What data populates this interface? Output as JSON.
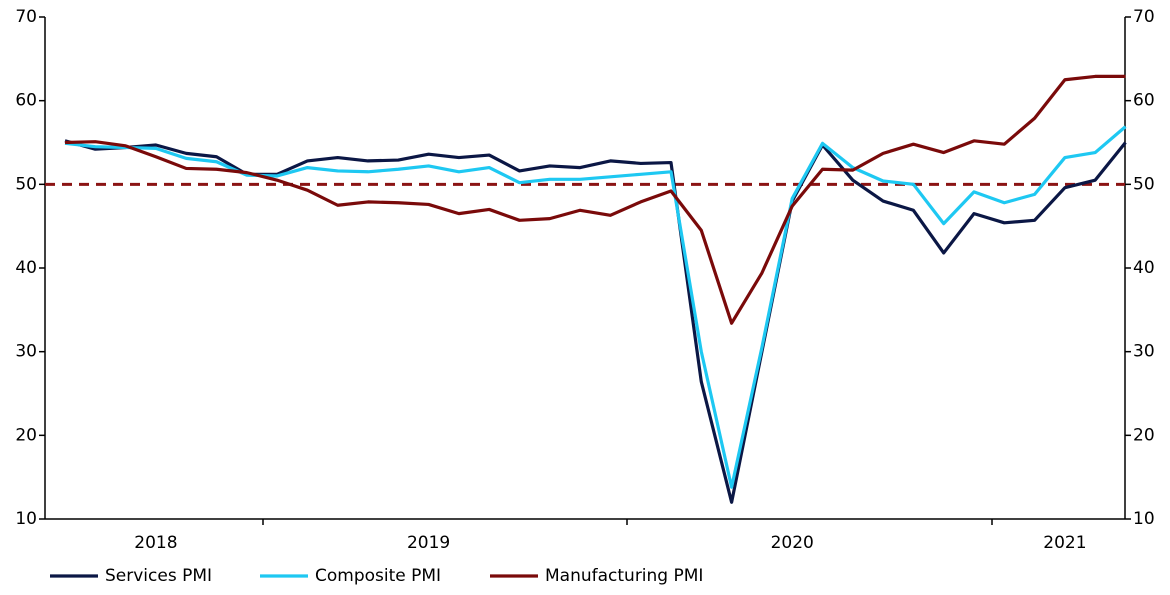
{
  "chart_data": {
    "type": "line",
    "categories": [
      null,
      null,
      null,
      "2018",
      null,
      null,
      null,
      null,
      null,
      null,
      null,
      null,
      "2019",
      null,
      null,
      null,
      null,
      null,
      null,
      null,
      null,
      null,
      null,
      null,
      "2020",
      null,
      null,
      null,
      null,
      null,
      null,
      null,
      null,
      "2021",
      null,
      null
    ],
    "series": [
      {
        "name": "Services PMI",
        "color": "#0b1745",
        "values": [
          55.2,
          54.2,
          54.4,
          54.7,
          53.7,
          53.3,
          51.2,
          51.2,
          52.8,
          53.2,
          52.8,
          52.9,
          53.6,
          53.2,
          53.5,
          51.6,
          52.2,
          52.0,
          52.8,
          52.5,
          52.6,
          26.4,
          12.0,
          30.0,
          48.0,
          54.7,
          50.5,
          48.0,
          46.9,
          41.8,
          46.5,
          45.4,
          45.7,
          49.6,
          50.5,
          55.0
        ]
      },
      {
        "name": "Composite PMI",
        "color": "#1ec8f2",
        "values": [
          54.9,
          54.5,
          54.4,
          54.3,
          53.1,
          52.7,
          51.1,
          51.0,
          52.0,
          51.6,
          51.5,
          51.8,
          52.2,
          51.5,
          52.0,
          50.2,
          50.6,
          50.6,
          50.9,
          51.2,
          51.5,
          30.0,
          13.8,
          30.5,
          48.3,
          54.9,
          52.0,
          50.4,
          50.0,
          45.3,
          49.1,
          47.8,
          48.8,
          53.2,
          53.8,
          56.9
        ]
      },
      {
        "name": "Manufacturing PMI",
        "color": "#7a0a0a",
        "values": [
          55.0,
          55.1,
          54.6,
          53.3,
          51.9,
          51.8,
          51.4,
          50.5,
          49.3,
          47.5,
          47.9,
          47.8,
          47.6,
          46.5,
          47.0,
          45.7,
          45.9,
          46.9,
          46.3,
          47.9,
          49.2,
          44.5,
          33.4,
          39.4,
          47.4,
          51.8,
          51.7,
          53.7,
          54.8,
          53.8,
          55.2,
          54.8,
          57.9,
          62.5,
          62.9,
          62.9
        ]
      }
    ],
    "ylim": [
      10,
      70
    ],
    "yticks": [
      10,
      20,
      30,
      40,
      50,
      60,
      70
    ],
    "y2lim": [
      10,
      70
    ],
    "y2ticks": [
      10,
      20,
      30,
      40,
      50,
      60,
      70
    ],
    "reference_line": {
      "value": 50,
      "color": "#8b1414"
    },
    "legend": "bottom-left"
  }
}
